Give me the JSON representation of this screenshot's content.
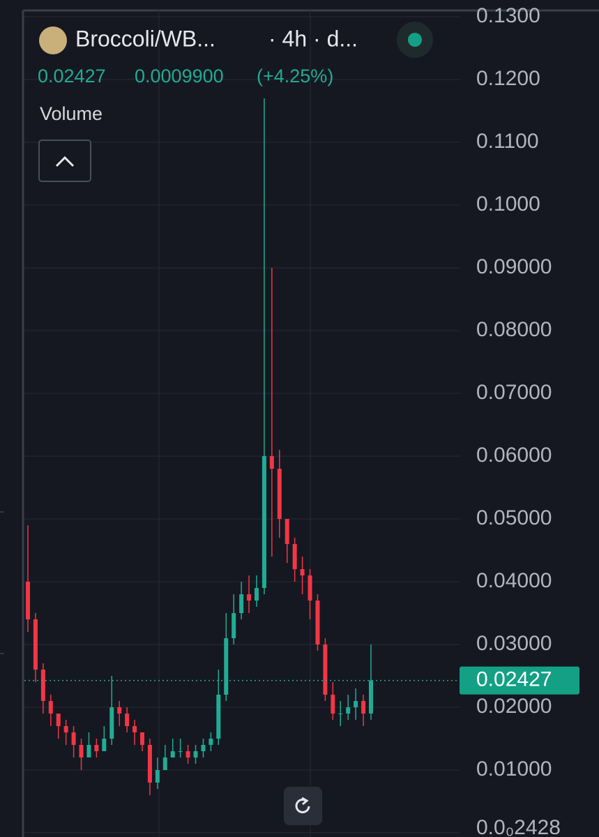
{
  "chart_data": {
    "type": "candlestick",
    "header": {
      "pair": "Broccoli/WB...",
      "interval": "· 4h · d...",
      "price": "0.02427",
      "change": "0.0009900",
      "change_pct": "(+4.25%)",
      "indicator": "Volume"
    },
    "open": [
      0.04,
      0.034,
      0.026,
      0.021,
      0.019,
      0.017,
      0.016,
      0.014,
      0.012,
      0.014,
      0.013,
      0.015,
      0.02,
      0.019,
      0.017,
      0.016,
      0.014,
      0.008,
      0.01,
      0.012,
      0.013,
      0.013,
      0.012,
      0.013,
      0.014,
      0.015,
      0.022,
      0.031,
      0.035,
      0.038,
      0.037,
      0.039,
      0.06,
      0.058,
      0.05,
      0.046,
      0.042,
      0.041,
      0.037,
      0.03,
      0.022,
      0.019,
      0.019,
      0.02,
      0.021,
      0.019
    ],
    "high": [
      0.049,
      0.035,
      0.027,
      0.022,
      0.019,
      0.018,
      0.017,
      0.015,
      0.016,
      0.015,
      0.017,
      0.025,
      0.021,
      0.02,
      0.018,
      0.016,
      0.015,
      0.012,
      0.014,
      0.015,
      0.015,
      0.014,
      0.014,
      0.015,
      0.016,
      0.026,
      0.035,
      0.038,
      0.04,
      0.041,
      0.041,
      0.117,
      0.09,
      0.061,
      0.049,
      0.047,
      0.044,
      0.042,
      0.038,
      0.031,
      0.024,
      0.021,
      0.022,
      0.023,
      0.022,
      0.03
    ],
    "low": [
      0.032,
      0.024,
      0.019,
      0.017,
      0.015,
      0.014,
      0.012,
      0.01,
      0.012,
      0.012,
      0.013,
      0.014,
      0.017,
      0.016,
      0.014,
      0.013,
      0.006,
      0.007,
      0.01,
      0.012,
      0.012,
      0.011,
      0.011,
      0.012,
      0.013,
      0.014,
      0.021,
      0.03,
      0.034,
      0.035,
      0.036,
      0.038,
      0.044,
      0.047,
      0.043,
      0.04,
      0.038,
      0.034,
      0.029,
      0.021,
      0.018,
      0.017,
      0.018,
      0.018,
      0.017,
      0.018
    ],
    "close": [
      0.034,
      0.026,
      0.021,
      0.019,
      0.017,
      0.016,
      0.014,
      0.012,
      0.014,
      0.013,
      0.015,
      0.02,
      0.019,
      0.017,
      0.016,
      0.014,
      0.008,
      0.01,
      0.012,
      0.013,
      0.013,
      0.012,
      0.013,
      0.014,
      0.015,
      0.022,
      0.031,
      0.035,
      0.038,
      0.037,
      0.039,
      0.06,
      0.058,
      0.05,
      0.046,
      0.042,
      0.041,
      0.037,
      0.03,
      0.022,
      0.019,
      0.019,
      0.02,
      0.021,
      0.019,
      0.02427
    ],
    "up_color": "#22ab94",
    "down_color": "#f23645",
    "last_price": 0.02427,
    "ylim": [
      0,
      0.13
    ],
    "yticks": [
      {
        "value": 2.428e-05,
        "label": "0.0₀2428"
      },
      {
        "value": 0.01,
        "label": "0.01000"
      },
      {
        "value": 0.02,
        "label": "0.02000"
      },
      {
        "value": 0.03,
        "label": "0.03000"
      },
      {
        "value": 0.04,
        "label": "0.04000"
      },
      {
        "value": 0.05,
        "label": "0.05000"
      },
      {
        "value": 0.06,
        "label": "0.06000"
      },
      {
        "value": 0.07,
        "label": "0.07000"
      },
      {
        "value": 0.08,
        "label": "0.08000"
      },
      {
        "value": 0.09,
        "label": "0.09000"
      },
      {
        "value": 0.1,
        "label": "0.1000"
      },
      {
        "value": 0.11,
        "label": "0.1100"
      },
      {
        "value": 0.12,
        "label": "0.1200"
      },
      {
        "value": 0.13,
        "label": "0.1300"
      }
    ],
    "grid": true
  }
}
